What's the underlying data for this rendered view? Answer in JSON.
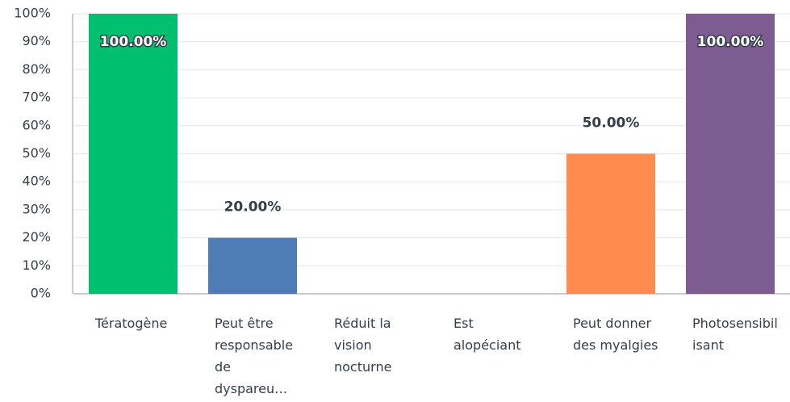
{
  "chart_data": {
    "type": "bar",
    "categories": [
      "Tératogène",
      "Peut être responsable de dyspareu…",
      "Réduit la vision nocturne",
      "Est alopéciant",
      "Peut donner des myalgies",
      "Photosensibilisant"
    ],
    "values": [
      100,
      20,
      0,
      0,
      50,
      100
    ],
    "value_labels": [
      "100.00%",
      "20.00%",
      null,
      null,
      "50.00%",
      "100.00%"
    ],
    "colors": [
      "#00bf6f",
      "#507cb6",
      "#6bc8cd",
      "#f9be00",
      "#ff8b4f",
      "#7d5c91"
    ],
    "ylim": [
      0,
      100
    ],
    "yticks": [
      {
        "value": 0,
        "label": "0%"
      },
      {
        "value": 10,
        "label": "10%"
      },
      {
        "value": 20,
        "label": "20%"
      },
      {
        "value": 30,
        "label": "30%"
      },
      {
        "value": 40,
        "label": "40%"
      },
      {
        "value": 50,
        "label": "50%"
      },
      {
        "value": 60,
        "label": "60%"
      },
      {
        "value": 70,
        "label": "70%"
      },
      {
        "value": 80,
        "label": "80%"
      },
      {
        "value": 90,
        "label": "90%"
      },
      {
        "value": 100,
        "label": "100%"
      }
    ],
    "grid": true
  }
}
